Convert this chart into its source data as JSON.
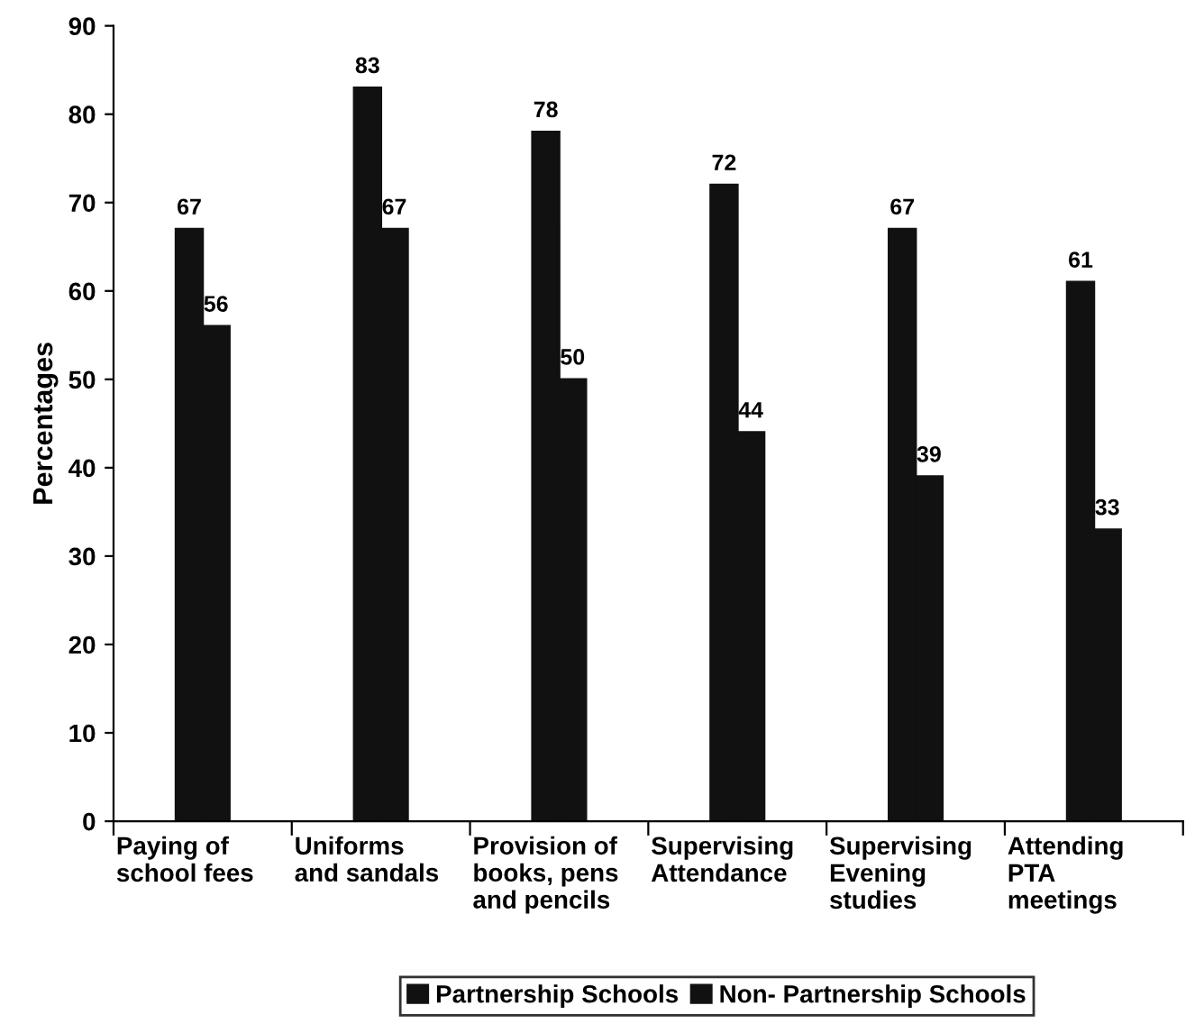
{
  "chart_data": {
    "type": "bar",
    "ylabel": "Percentages",
    "categories": [
      "Paying of\nschool fees",
      "Uniforms\nand sandals",
      "Provision of\nbooks, pens\nand pencils",
      "Supervising\nAttendance",
      "Supervising\nEvening\nstudies",
      "Attending\nPTA\nmeetings"
    ],
    "series": [
      {
        "name": "Partnership Schools",
        "color": "#111111",
        "values": [
          67,
          83,
          78,
          72,
          67,
          61
        ]
      },
      {
        "name": "Non- Partnership Schools",
        "color": "#111111",
        "values": [
          56,
          67,
          50,
          44,
          39,
          33
        ]
      }
    ],
    "ylim": [
      0,
      90
    ],
    "yticks": [
      0,
      10,
      20,
      30,
      40,
      50,
      60,
      70,
      80,
      90
    ],
    "data_labels": true,
    "grid": false,
    "legend": "bottom"
  }
}
